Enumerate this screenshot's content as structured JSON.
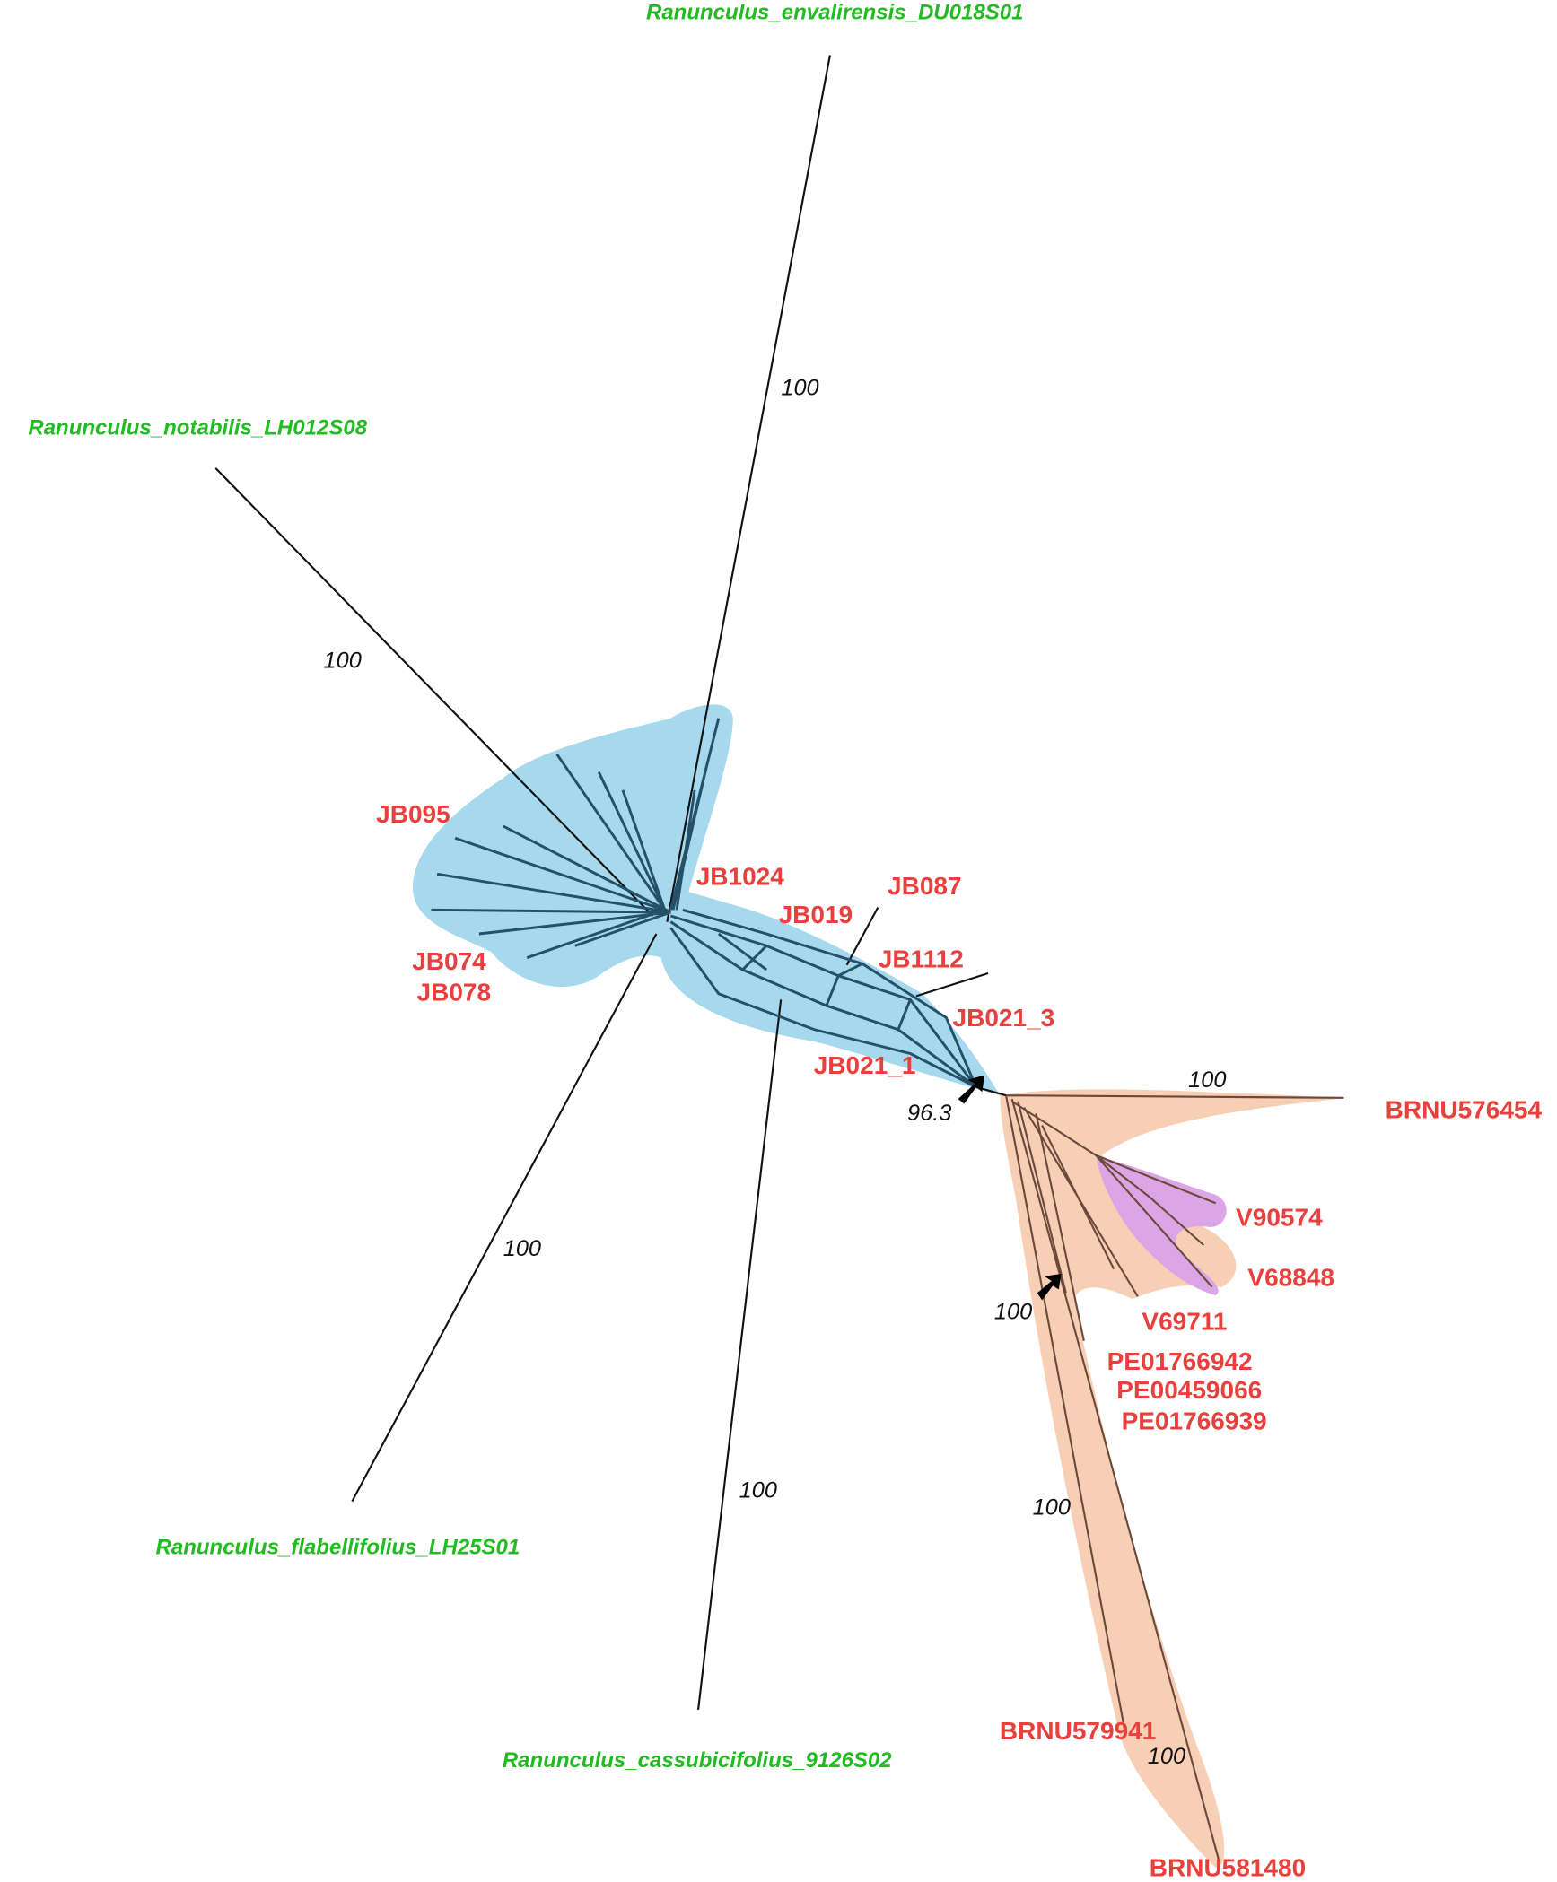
{
  "outgroups": [
    {
      "label": "Ranunculus_envalirensis_DU018S01"
    },
    {
      "label": "Ranunculus_notabilis_LH012S08"
    },
    {
      "label": "Ranunculus_flabellifolius_LH25S01"
    },
    {
      "label": "Ranunculus_cassubicifolius_9126S02"
    }
  ],
  "taxa": [
    "JB095",
    "JB1024",
    "JB087",
    "JB019",
    "JB1112",
    "JB074",
    "JB078",
    "JB021_3",
    "JB021_1",
    "BRNU576454",
    "V90574",
    "V68848",
    "V69711",
    "PE01766942",
    "PE00459066",
    "PE01766939",
    "BRNU579941",
    "BRNU581480"
  ],
  "support": [
    100,
    100,
    100,
    100,
    96.3,
    100,
    100,
    100,
    100
  ]
}
